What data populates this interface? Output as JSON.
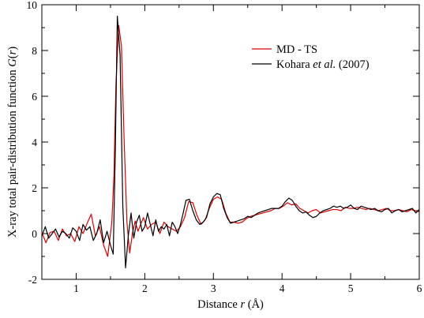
{
  "chart_data": {
    "type": "line",
    "xlabel": "Distance r (Å)",
    "xlabel_parts": [
      "Distance ",
      "r",
      " (Å)"
    ],
    "ylabel": "X-ray total pair-distribution function G(r)",
    "ylabel_parts": [
      "X-ray total pair-distribution function ",
      "G",
      "(",
      "r",
      ")"
    ],
    "xlim": [
      0.5,
      6
    ],
    "ylim": [
      -2,
      10
    ],
    "xticks": [
      1,
      2,
      3,
      4,
      5,
      6
    ],
    "yticks": [
      -2,
      0,
      2,
      4,
      6,
      8,
      10
    ],
    "xtick_labels": [
      "1",
      "2",
      "3",
      "4",
      "5",
      "6"
    ],
    "ytick_labels": [
      "-2",
      "0",
      "2",
      "4",
      "6",
      "8",
      "10"
    ],
    "grid": false,
    "legend_position": "top-right",
    "series": [
      {
        "name": "MD - TS",
        "name_parts": [
          "MD - TS"
        ],
        "color": "#e00000",
        "x": [
          0.5,
          0.56,
          0.62,
          0.68,
          0.74,
          0.8,
          0.86,
          0.92,
          0.98,
          1.04,
          1.1,
          1.16,
          1.22,
          1.28,
          1.34,
          1.4,
          1.46,
          1.52,
          1.55,
          1.58,
          1.62,
          1.66,
          1.7,
          1.74,
          1.78,
          1.82,
          1.86,
          1.9,
          1.94,
          1.98,
          2.04,
          2.1,
          2.16,
          2.22,
          2.28,
          2.34,
          2.4,
          2.46,
          2.52,
          2.58,
          2.64,
          2.7,
          2.76,
          2.82,
          2.88,
          2.94,
          3.0,
          3.06,
          3.12,
          3.18,
          3.24,
          3.3,
          3.36,
          3.42,
          3.48,
          3.54,
          3.6,
          3.66,
          3.72,
          3.78,
          3.84,
          3.9,
          3.96,
          4.02,
          4.08,
          4.14,
          4.2,
          4.26,
          4.32,
          4.38,
          4.44,
          4.5,
          4.56,
          4.62,
          4.68,
          4.74,
          4.8,
          4.86,
          4.92,
          4.98,
          5.04,
          5.1,
          5.16,
          5.22,
          5.28,
          5.34,
          5.4,
          5.46,
          5.52,
          5.58,
          5.64,
          5.7,
          5.76,
          5.82,
          5.88,
          5.94,
          6.0
        ],
        "values": [
          0.05,
          -0.4,
          0.05,
          0.1,
          -0.3,
          0.2,
          -0.1,
          0.0,
          -0.35,
          0.3,
          0.0,
          0.45,
          0.85,
          -0.1,
          0.3,
          -0.5,
          -1.0,
          0.5,
          2.5,
          6.5,
          9.1,
          8.2,
          4.0,
          0.5,
          -0.85,
          0.0,
          0.55,
          0.1,
          0.4,
          0.7,
          0.2,
          0.4,
          0.5,
          0.0,
          0.5,
          0.3,
          0.2,
          0.1,
          0.3,
          0.7,
          1.4,
          1.35,
          0.8,
          0.4,
          0.6,
          1.1,
          1.5,
          1.6,
          1.5,
          0.9,
          0.5,
          0.5,
          0.45,
          0.5,
          0.65,
          0.75,
          0.8,
          0.85,
          0.9,
          0.95,
          1.0,
          1.1,
          1.1,
          1.2,
          1.35,
          1.25,
          1.3,
          1.1,
          1.0,
          0.9,
          1.0,
          1.05,
          0.9,
          0.95,
          1.0,
          1.05,
          1.05,
          1.0,
          1.15,
          1.1,
          1.1,
          1.15,
          1.1,
          1.05,
          1.1,
          1.05,
          1.0,
          1.05,
          1.1,
          1.0,
          1.0,
          1.05,
          1.0,
          0.95,
          1.05,
          1.0,
          0.95
        ]
      },
      {
        "name": "Kohara et al. (2007)",
        "name_parts": [
          "Kohara ",
          "et al.",
          " (2007)"
        ],
        "color": "#000000",
        "x": [
          0.5,
          0.55,
          0.6,
          0.65,
          0.7,
          0.75,
          0.8,
          0.85,
          0.9,
          0.95,
          1.0,
          1.05,
          1.1,
          1.15,
          1.2,
          1.25,
          1.3,
          1.35,
          1.4,
          1.45,
          1.5,
          1.54,
          1.57,
          1.6,
          1.64,
          1.68,
          1.72,
          1.76,
          1.8,
          1.84,
          1.88,
          1.92,
          1.96,
          2.0,
          2.04,
          2.08,
          2.12,
          2.16,
          2.2,
          2.24,
          2.28,
          2.32,
          2.36,
          2.4,
          2.44,
          2.48,
          2.52,
          2.56,
          2.6,
          2.65,
          2.7,
          2.75,
          2.8,
          2.85,
          2.9,
          2.95,
          3.0,
          3.05,
          3.1,
          3.15,
          3.2,
          3.25,
          3.3,
          3.35,
          3.4,
          3.45,
          3.5,
          3.55,
          3.6,
          3.65,
          3.7,
          3.75,
          3.8,
          3.85,
          3.9,
          3.95,
          4.0,
          4.05,
          4.1,
          4.15,
          4.2,
          4.25,
          4.3,
          4.35,
          4.4,
          4.45,
          4.5,
          4.55,
          4.6,
          4.65,
          4.7,
          4.75,
          4.8,
          4.85,
          4.9,
          4.95,
          5.0,
          5.05,
          5.1,
          5.15,
          5.2,
          5.25,
          5.3,
          5.35,
          5.4,
          5.45,
          5.5,
          5.55,
          5.6,
          5.65,
          5.7,
          5.75,
          5.8,
          5.85,
          5.9,
          5.95,
          6.0
        ],
        "values": [
          -0.1,
          0.3,
          -0.2,
          0.0,
          0.2,
          -0.15,
          0.1,
          0.0,
          -0.2,
          0.25,
          0.1,
          -0.3,
          0.4,
          0.15,
          0.3,
          -0.3,
          0.0,
          0.6,
          -0.4,
          0.1,
          -0.5,
          -0.9,
          3.5,
          9.5,
          7.8,
          1.2,
          -1.5,
          -0.1,
          0.9,
          -0.2,
          0.5,
          0.8,
          0.1,
          0.3,
          0.9,
          0.4,
          -0.1,
          0.6,
          0.1,
          0.3,
          0.2,
          0.4,
          -0.1,
          0.5,
          0.3,
          0.0,
          0.4,
          0.9,
          1.45,
          1.5,
          1.0,
          0.6,
          0.4,
          0.5,
          0.7,
          1.3,
          1.6,
          1.75,
          1.7,
          1.1,
          0.7,
          0.45,
          0.5,
          0.55,
          0.6,
          0.65,
          0.75,
          0.7,
          0.8,
          0.9,
          0.95,
          1.0,
          1.05,
          1.1,
          1.1,
          1.1,
          1.2,
          1.4,
          1.55,
          1.45,
          1.2,
          1.0,
          0.9,
          0.95,
          0.8,
          0.7,
          0.75,
          0.9,
          1.0,
          1.05,
          1.1,
          1.2,
          1.15,
          1.2,
          1.1,
          1.15,
          1.25,
          1.1,
          1.05,
          1.2,
          1.15,
          1.1,
          1.05,
          1.1,
          1.0,
          0.95,
          1.05,
          1.1,
          0.9,
          1.0,
          1.05,
          0.95,
          1.0,
          1.05,
          1.1,
          0.9,
          1.05
        ]
      }
    ]
  }
}
